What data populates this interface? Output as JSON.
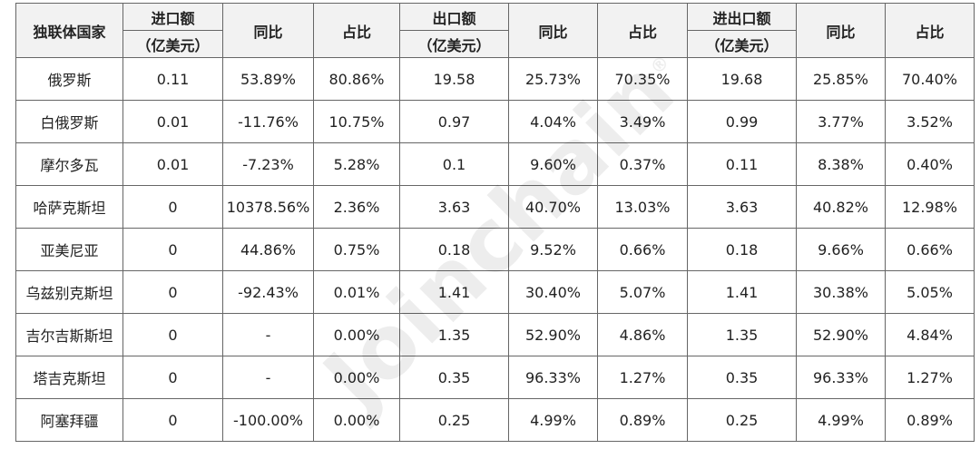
{
  "table": {
    "header": {
      "country": "独联体国家",
      "groups": [
        {
          "amount": "进口额",
          "unit": "（亿美元）",
          "yoy": "同比",
          "share": "占比"
        },
        {
          "amount": "出口额",
          "unit": "（亿美元）",
          "yoy": "同比",
          "share": "占比"
        },
        {
          "amount": "进出口额",
          "unit": "（亿美元）",
          "yoy": "同比",
          "share": "占比"
        }
      ]
    },
    "rows": [
      [
        "俄罗斯",
        "0.11",
        "53.89%",
        "80.86%",
        "19.58",
        "25.73%",
        "70.35%",
        "19.68",
        "25.85%",
        "70.40%"
      ],
      [
        "白俄罗斯",
        "0.01",
        "-11.76%",
        "10.75%",
        "0.97",
        "4.04%",
        "3.49%",
        "0.99",
        "3.77%",
        "3.52%"
      ],
      [
        "摩尔多瓦",
        "0.01",
        "-7.23%",
        "5.28%",
        "0.1",
        "9.60%",
        "0.37%",
        "0.11",
        "8.38%",
        "0.40%"
      ],
      [
        "哈萨克斯坦",
        "0",
        "10378.56%",
        "2.36%",
        "3.63",
        "40.70%",
        "13.03%",
        "3.63",
        "40.82%",
        "12.98%"
      ],
      [
        "亚美尼亚",
        "0",
        "44.86%",
        "0.75%",
        "0.18",
        "9.52%",
        "0.66%",
        "0.18",
        "9.66%",
        "0.66%"
      ],
      [
        "乌兹别克斯坦",
        "0",
        "-92.43%",
        "0.01%",
        "1.41",
        "30.40%",
        "5.07%",
        "1.41",
        "30.38%",
        "5.05%"
      ],
      [
        "吉尔吉斯斯坦",
        "0",
        "-",
        "0.00%",
        "1.35",
        "52.90%",
        "4.86%",
        "1.35",
        "52.90%",
        "4.84%"
      ],
      [
        "塔吉克斯坦",
        "0",
        "-",
        "0.00%",
        "0.35",
        "96.33%",
        "1.27%",
        "0.35",
        "96.33%",
        "1.27%"
      ],
      [
        "阿塞拜疆",
        "0",
        "-100.00%",
        "0.00%",
        "0.25",
        "4.99%",
        "0.89%",
        "0.25",
        "4.99%",
        "0.89%"
      ]
    ]
  },
  "watermark": {
    "text": "Joinchain",
    "mark": "®"
  }
}
